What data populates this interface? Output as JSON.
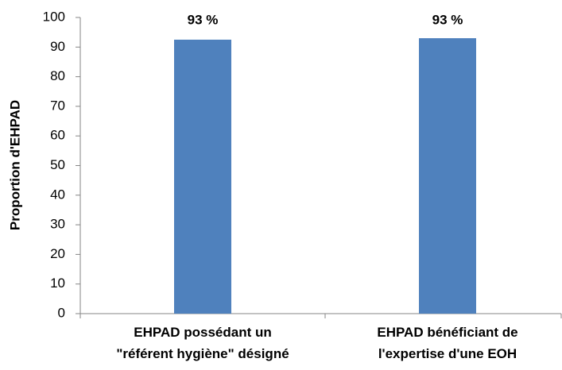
{
  "chart_data": {
    "type": "bar",
    "ylabel": "Proportion d'EHPAD",
    "categories": [
      "EHPAD possédant un\n\"référent hygiène\" désigné",
      "EHPAD bénéficiant de\nl'expertise d'une EOH"
    ],
    "values": [
      92.5,
      93
    ],
    "value_labels": [
      "93 %",
      "93 %"
    ],
    "color": "#4f81bd",
    "ylim": [
      0,
      100
    ],
    "yticks": [
      0,
      10,
      20,
      30,
      40,
      50,
      60,
      70,
      80,
      90,
      100
    ],
    "grid": false
  }
}
